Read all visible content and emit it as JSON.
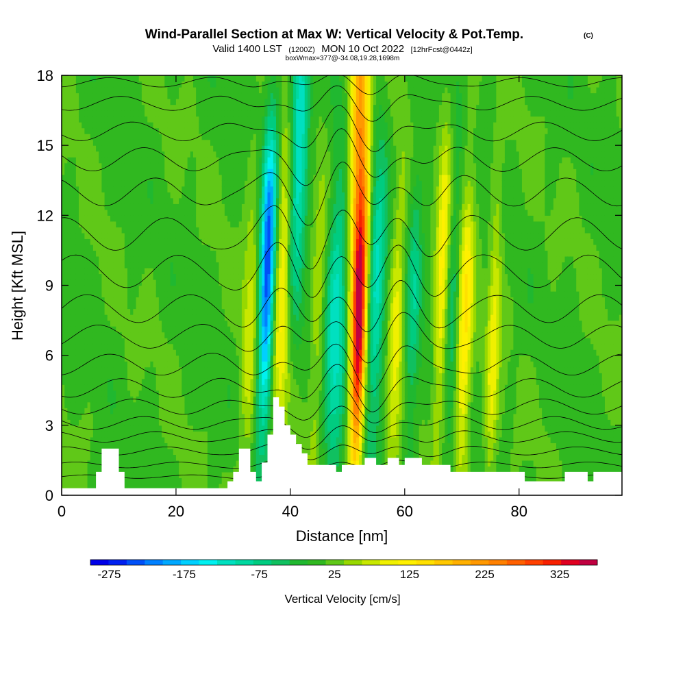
{
  "title": {
    "main": "Wind-Parallel Section at Max W: Vertical Velocity & Pot.Temp.",
    "copyright": "(C)",
    "valid_prefix": "Valid 1400 LST",
    "valid_zulu": "(1200Z)",
    "valid_date": "MON 10 Oct 2022",
    "forecast": "[12hrFcst@0442z]",
    "boxinfo": "boxWmax=377@-34.08,19.28,1698m"
  },
  "chart_data": {
    "type": "heatmap",
    "field": "vertical velocity with potential temperature contours",
    "xlabel": "Distance [nm]",
    "ylabel": "Height [Kft MSL]",
    "xlim": [
      0,
      98
    ],
    "ylim": [
      0,
      18
    ],
    "x_ticks": [
      0,
      20,
      40,
      60,
      80
    ],
    "y_ticks": [
      0,
      3,
      6,
      9,
      12,
      15,
      18
    ],
    "colorbar": {
      "title": "Vertical Velocity [cm/s]",
      "min": -300,
      "max": 375,
      "step": 25,
      "tick_labels": [
        "-275",
        "-175",
        "-75",
        "25",
        "125",
        "225",
        "325"
      ],
      "tick_values": [
        -275,
        -175,
        -75,
        25,
        125,
        225,
        325
      ],
      "colors": [
        "#0000e8",
        "#0020f0",
        "#0050f8",
        "#0080ff",
        "#00a8ff",
        "#00d0ff",
        "#00f0f0",
        "#00e0c0",
        "#00d8a0",
        "#00cc80",
        "#10c060",
        "#20b830",
        "#30b820",
        "#60c818",
        "#98d800",
        "#c8e800",
        "#f0f000",
        "#fff000",
        "#ffe000",
        "#ffc800",
        "#ffb000",
        "#ff9800",
        "#ff8000",
        "#ff6000",
        "#ff4000",
        "#f82000",
        "#e00020",
        "#c00040"
      ]
    },
    "updraft_bands": [
      {
        "x": 38.5,
        "h_center": 9.0,
        "width": 1.6,
        "peak": 125
      },
      {
        "x": 45.0,
        "h_center": 7.5,
        "width": 1.4,
        "peak": 60
      },
      {
        "x": 52.0,
        "h_center": 7.5,
        "width": 1.3,
        "peak": 377
      },
      {
        "x": 52.0,
        "h_center": 16.5,
        "width": 1.6,
        "peak": 200
      },
      {
        "x": 58.5,
        "h_center": 7.0,
        "width": 1.3,
        "peak": 90
      },
      {
        "x": 66.5,
        "h_center": 9.5,
        "width": 1.1,
        "peak": 110
      },
      {
        "x": 70.5,
        "h_center": 7.0,
        "width": 1.3,
        "peak": 130
      },
      {
        "x": 75.5,
        "h_center": 6.5,
        "width": 1.1,
        "peak": 90
      },
      {
        "x": 33.0,
        "h_center": 7.0,
        "width": 1.5,
        "peak": 70
      }
    ],
    "downdraft_bands": [
      {
        "x": 36.0,
        "h_center": 9.5,
        "width": 1.4,
        "peak": -275
      },
      {
        "x": 41.5,
        "h_center": 15.0,
        "width": 1.6,
        "peak": -160
      },
      {
        "x": 48.0,
        "h_center": 7.5,
        "width": 2.0,
        "peak": -140
      },
      {
        "x": 55.0,
        "h_center": 8.5,
        "width": 1.6,
        "peak": -130
      },
      {
        "x": 61.5,
        "h_center": 8.0,
        "width": 1.3,
        "peak": -80
      },
      {
        "x": 68.5,
        "h_center": 8.5,
        "width": 1.0,
        "peak": -60
      }
    ],
    "terrain_profile": [
      [
        0,
        0.3
      ],
      [
        6,
        0.3
      ],
      [
        6,
        1.0
      ],
      [
        7,
        1.0
      ],
      [
        7,
        2.0
      ],
      [
        10,
        2.0
      ],
      [
        10,
        1.0
      ],
      [
        11,
        1.0
      ],
      [
        11,
        0.3
      ],
      [
        29,
        0.3
      ],
      [
        29,
        0.6
      ],
      [
        30,
        0.6
      ],
      [
        30,
        1.0
      ],
      [
        31,
        1.0
      ],
      [
        31,
        2.0
      ],
      [
        33,
        2.0
      ],
      [
        33,
        1.0
      ],
      [
        34,
        1.0
      ],
      [
        34,
        0.6
      ],
      [
        35,
        0.6
      ],
      [
        35,
        1.4
      ],
      [
        36,
        1.4
      ],
      [
        36,
        2.6
      ],
      [
        37,
        2.6
      ],
      [
        37,
        4.2
      ],
      [
        38,
        4.2
      ],
      [
        38,
        3.8
      ],
      [
        39,
        3.8
      ],
      [
        39,
        3.0
      ],
      [
        40,
        3.0
      ],
      [
        40,
        2.6
      ],
      [
        41,
        2.6
      ],
      [
        41,
        2.2
      ],
      [
        42,
        2.2
      ],
      [
        42,
        1.8
      ],
      [
        43,
        1.8
      ],
      [
        43,
        1.3
      ],
      [
        48,
        1.3
      ],
      [
        48,
        1.0
      ],
      [
        49,
        1.0
      ],
      [
        49,
        1.3
      ],
      [
        53,
        1.3
      ],
      [
        53,
        1.6
      ],
      [
        55,
        1.6
      ],
      [
        55,
        1.3
      ],
      [
        57,
        1.3
      ],
      [
        57,
        1.6
      ],
      [
        59,
        1.6
      ],
      [
        59,
        1.3
      ],
      [
        60,
        1.3
      ],
      [
        60,
        1.6
      ],
      [
        63,
        1.6
      ],
      [
        63,
        1.3
      ],
      [
        68,
        1.3
      ],
      [
        68,
        1.0
      ],
      [
        81,
        1.0
      ],
      [
        81,
        0.6
      ],
      [
        88,
        0.6
      ],
      [
        88,
        1.0
      ],
      [
        92,
        1.0
      ],
      [
        92,
        0.6
      ],
      [
        93,
        0.6
      ],
      [
        93,
        1.0
      ],
      [
        98,
        1.0
      ]
    ],
    "theta_contour_levels": [
      {
        "base_height": 0.8,
        "amplitude": 0.15
      },
      {
        "base_height": 1.3,
        "amplitude": 0.25
      },
      {
        "base_height": 1.9,
        "amplitude": 0.35
      },
      {
        "base_height": 2.5,
        "amplitude": 0.45
      },
      {
        "base_height": 3.1,
        "amplitude": 0.55
      },
      {
        "base_height": 3.8,
        "amplitude": 0.65
      },
      {
        "base_height": 4.6,
        "amplitude": 0.8
      },
      {
        "base_height": 5.6,
        "amplitude": 0.9
      },
      {
        "base_height": 6.8,
        "amplitude": 1.0
      },
      {
        "base_height": 8.0,
        "amplitude": 1.2
      },
      {
        "base_height": 9.6,
        "amplitude": 1.4
      },
      {
        "base_height": 11.2,
        "amplitude": 1.4
      },
      {
        "base_height": 13.0,
        "amplitude": 1.2
      },
      {
        "base_height": 14.4,
        "amplitude": 1.0
      },
      {
        "base_height": 15.6,
        "amplitude": 0.8
      },
      {
        "base_height": 16.8,
        "amplitude": 0.6
      },
      {
        "base_height": 17.7,
        "amplitude": 0.4
      }
    ]
  }
}
